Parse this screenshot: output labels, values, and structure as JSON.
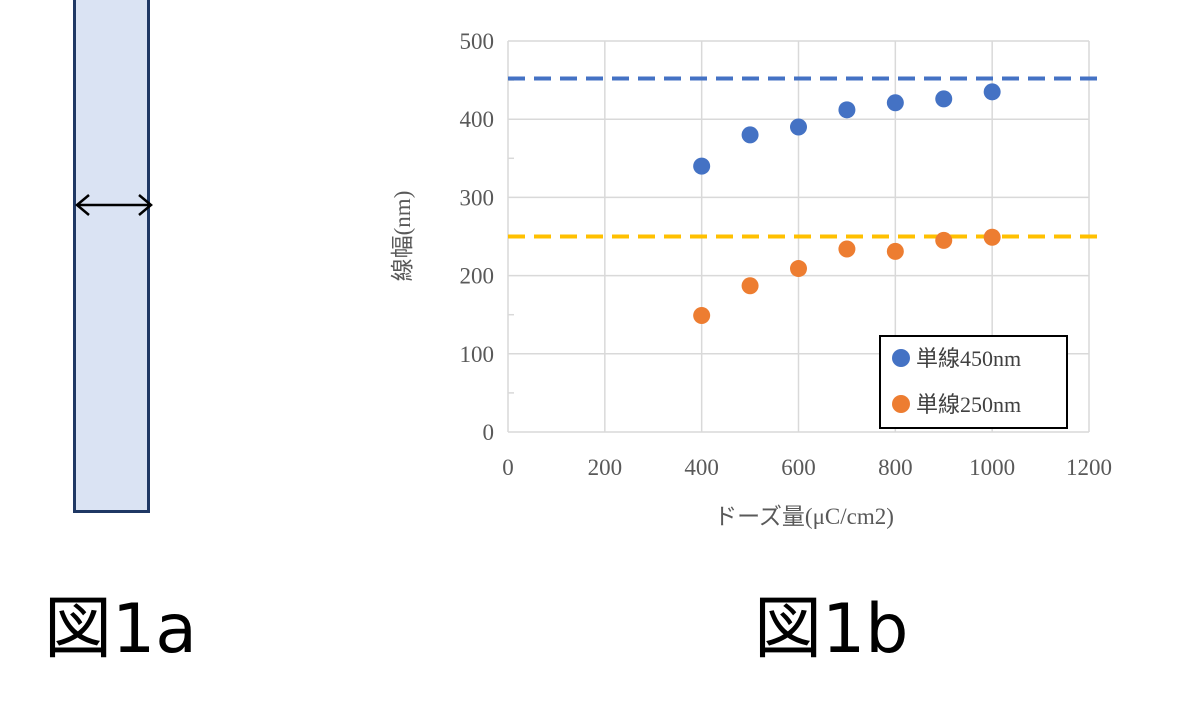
{
  "captions": {
    "figure_a": "図1a",
    "figure_b": "図1b"
  },
  "colors": {
    "rect_fill": "#dae3f3",
    "rect_border": "#1f3864",
    "series_450": "#4472c4",
    "series_250": "#ed7d31",
    "ref_450": "#4472c4",
    "ref_250": "#ffc000",
    "grid": "#d9d9d9",
    "text": "#595959"
  },
  "figure_a": {
    "arrow_icon": "double-arrow-horizontal-icon"
  },
  "chart_data": {
    "type": "scatter",
    "title": "",
    "xlabel": "ドーズ量(μC/cm2)",
    "ylabel": "線幅(nm)",
    "xlim": [
      0,
      1200
    ],
    "ylim": [
      0,
      500
    ],
    "xticks": [
      0,
      200,
      400,
      600,
      800,
      1000,
      1200
    ],
    "yticks": [
      0,
      100,
      200,
      300,
      400,
      500
    ],
    "grid": true,
    "legend_position": "bottom-right",
    "series": [
      {
        "name": "単線450nm",
        "color": "#4472c4",
        "x": [
          400,
          500,
          600,
          700,
          800,
          900,
          1000
        ],
        "y": [
          340,
          380,
          390,
          412,
          421,
          426,
          435
        ]
      },
      {
        "name": "単線250nm",
        "color": "#ed7d31",
        "x": [
          400,
          500,
          600,
          700,
          800,
          900,
          1000
        ],
        "y": [
          149,
          187,
          209,
          234,
          231,
          245,
          249
        ]
      }
    ],
    "reference_lines": [
      {
        "y": 452,
        "color": "#4472c4",
        "style": "dashed"
      },
      {
        "y": 250,
        "color": "#ffc000",
        "style": "dashed"
      }
    ]
  }
}
